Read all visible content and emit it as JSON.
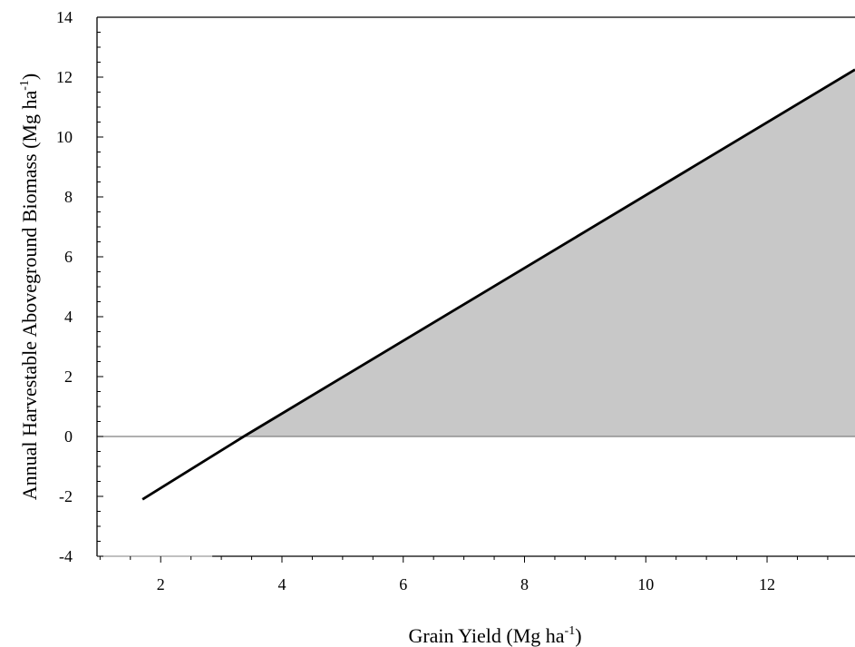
{
  "chart_data": {
    "type": "area",
    "title": "",
    "xlabel": {
      "main": "Grain Yield (Mg ha",
      "superscript": "-1",
      "close": ")"
    },
    "ylabel": {
      "main": "Annual Harvestable Aboveground Biomass (Mg ha",
      "superscript": "-1",
      "close": ")"
    },
    "xlim": [
      0.95,
      13.45
    ],
    "ylim": [
      -4,
      14
    ],
    "x_ticks": [
      2,
      4,
      6,
      8,
      10,
      12
    ],
    "y_ticks": [
      -4,
      -2,
      0,
      2,
      4,
      6,
      8,
      10,
      12,
      14
    ],
    "x_minor_step": 0.5,
    "y_minor_step": 0.5,
    "grid": false,
    "series": [
      {
        "x": [
          1.7,
          3.37,
          13.45
        ],
        "y": [
          -2.1,
          0.0,
          12.25
        ],
        "color": "#000000"
      }
    ],
    "fill": {
      "baseline": 0,
      "x_from": 3.37,
      "x_to": 13.45,
      "color": "#c8c8c8"
    },
    "zero_line": {
      "y": 0,
      "color": "#808080"
    }
  }
}
